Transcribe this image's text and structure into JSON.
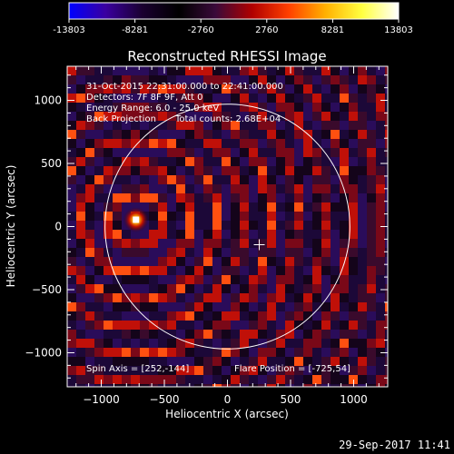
{
  "colorbar": {
    "ticks": [
      "-13803",
      "-8281",
      "-2760",
      "2760",
      "8281",
      "13803"
    ],
    "tick_values": [
      -13803,
      -8281,
      -2760,
      2760,
      8281,
      13803
    ],
    "range": [
      -13803,
      13803
    ],
    "colors": [
      "#0000ff",
      "#3a00a0",
      "#1a0030",
      "#000000",
      "#3a0a3a",
      "#b00000",
      "#ff4000",
      "#ffb000",
      "#ffff40",
      "#ffffff"
    ]
  },
  "chart_data": {
    "type": "heatmap",
    "title": "Reconstructed RHESSI Image",
    "xlabel": "Heliocentric X (arcsec)",
    "ylabel": "Heliocentric Y (arcsec)",
    "xlim": [
      -1270,
      1270
    ],
    "ylim": [
      -1270,
      1270
    ],
    "xticks": [
      -1000,
      -500,
      0,
      500,
      1000
    ],
    "yticks": [
      -1000,
      -500,
      0,
      500,
      1000
    ],
    "xtick_labels": [
      "−1000",
      "−500",
      "0",
      "500",
      "1000"
    ],
    "ytick_labels": [
      "−1000",
      "−500",
      "0",
      "500",
      "1000"
    ],
    "solar_disk": {
      "center": [
        0,
        0
      ],
      "radius_arcsec": 970
    },
    "flare_position": [
      -725,
      54
    ],
    "spin_axis": [
      252,
      -144
    ],
    "annotations": {
      "time_range": "31-Oct-2015 22:31:00.000 to 22:41:00.000",
      "detectors": "Detectors: 7F 8F 9F, Att 0",
      "energy": "Energy Range: 6.0 - 25.0 keV",
      "method": "Back Projection",
      "counts": "Total counts: 2.68E+04",
      "spin_axis_label": "Spin Axis = [252,-144]",
      "flare_position_label": "Flare Position = [-725,54]"
    }
  },
  "footer": {
    "timestamp": "29-Sep-2017 11:41"
  }
}
